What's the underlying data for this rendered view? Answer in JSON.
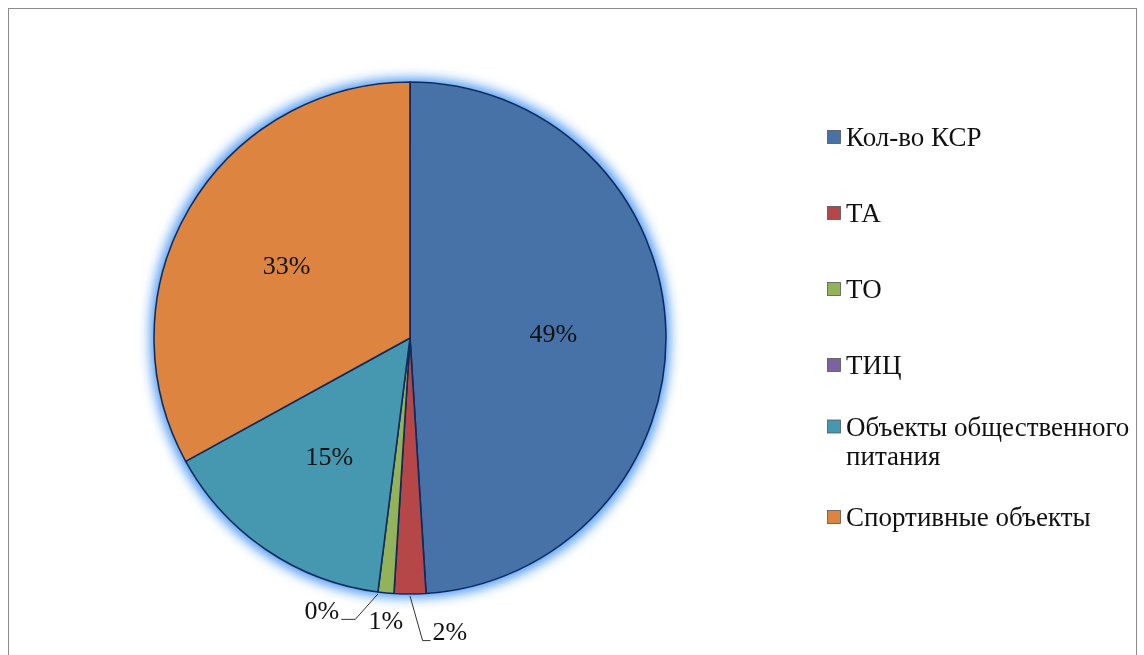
{
  "chart_data": {
    "type": "pie",
    "categories": [
      "Кол-во КСР",
      "ТА",
      "ТО",
      "ТИЦ",
      "Объекты общественного питания",
      "Спортивные объекты"
    ],
    "values": [
      49,
      2,
      1,
      0,
      15,
      33
    ],
    "colors": [
      "#4672a7",
      "#b5464a",
      "#93b35a",
      "#7d62a0",
      "#4598b0",
      "#dd853f"
    ],
    "value_labels": [
      "49%",
      "2%",
      "1%",
      "0%",
      "15%",
      "33%"
    ],
    "legend": "right"
  }
}
